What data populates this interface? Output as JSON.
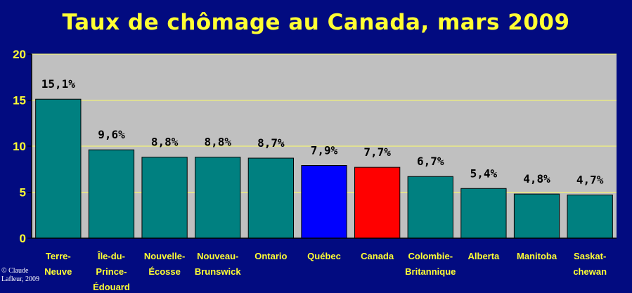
{
  "chart_data": {
    "type": "bar",
    "title": "Taux de chômage au Canada, mars 2009",
    "categories": [
      [
        "Terre-",
        "Neuve"
      ],
      [
        "Île-du-",
        "Prince-",
        "Édouard"
      ],
      [
        "Nouvelle-",
        "Écosse"
      ],
      [
        "Nouveau-",
        "Brunswick"
      ],
      [
        "Ontario"
      ],
      [
        "Québec"
      ],
      [
        "Canada"
      ],
      [
        "Colombie-",
        "Britannique"
      ],
      [
        "Alberta"
      ],
      [
        "Manitoba"
      ],
      [
        "Saskat-",
        "chewan"
      ]
    ],
    "values": [
      15.1,
      9.6,
      8.8,
      8.8,
      8.7,
      7.9,
      7.7,
      6.7,
      5.4,
      4.8,
      4.7
    ],
    "data_labels": [
      "15,1%",
      "9,6%",
      "8,8%",
      "8,8%",
      "8,7%",
      "7,9%",
      "7,7%",
      "6,7%",
      "5,4%",
      "4,8%",
      "4,7%"
    ],
    "bar_colors": [
      "#008080",
      "#008080",
      "#008080",
      "#008080",
      "#008080",
      "#0000ff",
      "#ff0000",
      "#008080",
      "#008080",
      "#008080",
      "#008080"
    ],
    "ylim": [
      0,
      20
    ],
    "yticks": [
      0,
      5,
      10,
      15,
      20
    ],
    "grid": true,
    "xlabel": "",
    "ylabel": ""
  },
  "colors": {
    "background": "#020b80",
    "plot_area": "#c0c0c0",
    "gridline": "#ffff66",
    "text": "#ffff33"
  },
  "credit": [
    "© Claude",
    "Lafleur, 2009"
  ]
}
